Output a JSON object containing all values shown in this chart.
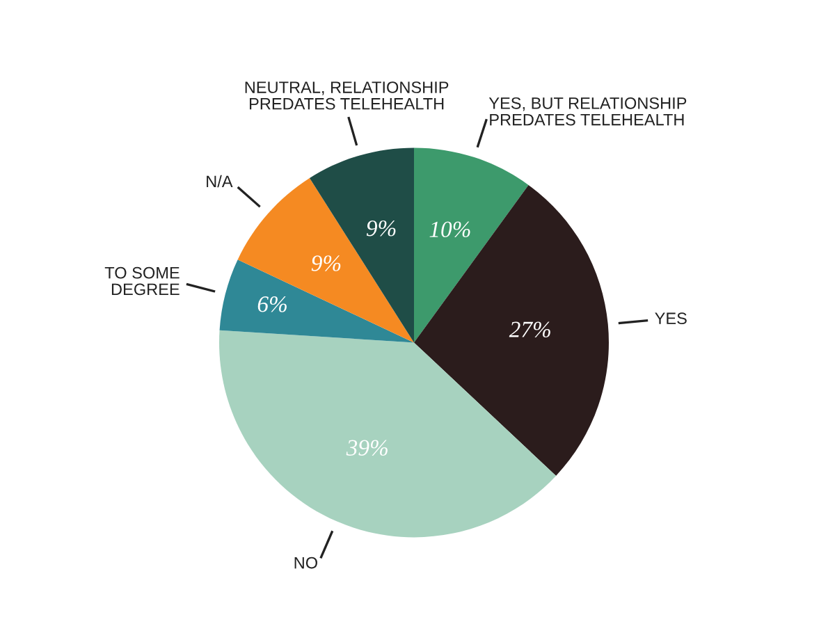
{
  "chart_data": {
    "type": "pie",
    "categories": [
      "YES, BUT RELATIONSHIP\nPREDATES TELEHEALTH",
      "YES",
      "NO",
      "TO SOME\nDEGREE",
      "N/A",
      "NEUTRAL, RELATIONSHIP\nPREDATES TELEHEALTH"
    ],
    "values": [
      10,
      27,
      39,
      6,
      9,
      9
    ],
    "value_labels": [
      "10%",
      "27%",
      "39%",
      "6%",
      "9%",
      "9%"
    ],
    "colors": [
      "#3d9a6c",
      "#2b1c1c",
      "#a7d2bf",
      "#2f8896",
      "#f58a22",
      "#1f4d47"
    ],
    "legend": false
  }
}
